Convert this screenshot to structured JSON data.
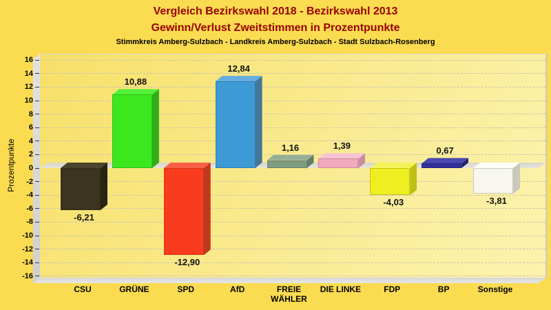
{
  "title": {
    "line1": "Vergleich Bezirkswahl 2018 - Bezirkswahl 2013",
    "line2": "Gewinn/Verlust Zweitstimmen in Prozentpunkte",
    "subtitle": "Stimmkreis Amberg-Sulzbach - Landkreis Amberg-Sulzbach - Stadt Sulzbach-Rosenberg"
  },
  "colors": {
    "page_bg": "#FBDC50",
    "title_text": "#990000",
    "subtitle_text": "#000000",
    "plot_gradient_start": "#F7E068",
    "plot_gradient_end": "#FCF3AE",
    "wall_gray": "#D4D4D4",
    "floor_gray": "#DCDCDC",
    "zero_plane": "#DDDBCF",
    "gridline": "#C4C2B6",
    "value_label_text": "#111111",
    "axis_text": "#000000"
  },
  "chart_data": {
    "type": "bar",
    "title": "Vergleich Bezirkswahl 2018 - Bezirkswahl 2013 — Gewinn/Verlust Zweitstimmen in Prozentpunkte",
    "subtitle": "Stimmkreis Amberg-Sulzbach - Landkreis Amberg-Sulzbach - Stadt Sulzbach-Rosenberg",
    "xlabel": "",
    "ylabel": "Prozentpunkte",
    "ylim": [
      -16,
      16
    ],
    "ytick_step": 2,
    "yticks": [
      16,
      14,
      12,
      10,
      8,
      6,
      4,
      2,
      0,
      -2,
      -4,
      -6,
      -8,
      -10,
      -12,
      -14,
      -16
    ],
    "grid": true,
    "style_3d": true,
    "legend": "none",
    "categories": [
      "CSU",
      "GRÜNE",
      "SPD",
      "AfD",
      "FREIE WÄHLER",
      "DIE LINKE",
      "FDP",
      "BP",
      "Sonstige"
    ],
    "values": [
      -6.21,
      10.88,
      -12.9,
      12.84,
      1.16,
      1.39,
      -4.03,
      0.67,
      -3.81
    ],
    "bars": [
      {
        "party": "CSU",
        "display": "CSU",
        "value": -6.21,
        "label": "-6,21",
        "front": "#3B351F",
        "side": "#292312",
        "top": "#4C452B"
      },
      {
        "party": "GRÜNE",
        "display": "GRÜNE",
        "value": 10.88,
        "label": "10,88",
        "front": "#3BE81E",
        "side": "#2FAE17",
        "top": "#55F03A"
      },
      {
        "party": "SPD",
        "display": "SPD",
        "value": -12.9,
        "label": "-12,90",
        "front": "#F93C1E",
        "side": "#BE3A1E",
        "top": "#FA6045"
      },
      {
        "party": "AfD",
        "display": "AfD",
        "value": 12.84,
        "label": "12,84",
        "front": "#3E9AD5",
        "side": "#437899",
        "top": "#65AEDF"
      },
      {
        "party": "FREIE WÄHLER",
        "display": "FREIE\nWÄHLER",
        "value": 1.16,
        "label": "1,16",
        "front": "#7E9C80",
        "side": "#627E66",
        "top": "#94AF97"
      },
      {
        "party": "DIE LINKE",
        "display": "DIE LINKE",
        "value": 1.39,
        "label": "1,39",
        "front": "#F3A9BE",
        "side": "#CB8AA2",
        "top": "#F7C2D1"
      },
      {
        "party": "FDP",
        "display": "FDP",
        "value": -4.03,
        "label": "-4,03",
        "front": "#EEEE20",
        "side": "#BFBE14",
        "top": "#F4F45A"
      },
      {
        "party": "BP",
        "display": "BP",
        "value": 0.67,
        "label": "0,67",
        "front": "#31319B",
        "side": "#232370",
        "top": "#4A4AB0"
      },
      {
        "party": "Sonstige",
        "display": "Sonstige",
        "value": -3.81,
        "label": "-3,81",
        "front": "#F7F7EF",
        "side": "#C9C9BC",
        "top": "#FDFDF7"
      }
    ]
  }
}
